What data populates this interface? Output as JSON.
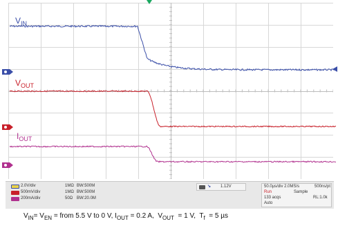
{
  "traces": {
    "vin": {
      "label_main": "V",
      "label_sub": "IN",
      "color": "#3a4ea8"
    },
    "vout": {
      "label_main": "V",
      "label_sub": "OUT",
      "color": "#c8202a"
    },
    "iout": {
      "label_main": "I",
      "label_sub": "OUT",
      "color": "#b0308e"
    }
  },
  "readouts": {
    "ch1": {
      "badge": "1",
      "scale": "2.0V/div",
      "coupling": "1MΩ",
      "bw": "BW:500M"
    },
    "ch2": {
      "badge": "2",
      "scale": "500mV/div",
      "coupling": "1MΩ",
      "bw": "BW:500M"
    },
    "ch3": {
      "badge": "3",
      "scale": "200mA/div",
      "coupling": "50Ω",
      "bw": "BW:20.0M"
    },
    "trigger": {
      "source": "1",
      "slope": "↘",
      "level": "1.12V"
    },
    "acquisition": {
      "timing": "50.0µs/div  2.0MS/s",
      "resolution": "500ns/pt",
      "state": "Run",
      "mode": "Sample",
      "acqs": "133 acqs",
      "record_length": "RL:1.0k",
      "auto": "Auto"
    }
  },
  "caption": {
    "p1": "V",
    "p1_sub": "IN",
    "p2": "= V",
    "p2_sub": "EN",
    "p3": " = from 5.5 V to 0 V, I",
    "p3_sub": "OUT",
    "p4": " = 0.2 A,  V",
    "p4_sub": "OUT",
    "p5": "  = 1 V,  T",
    "p5_sub": "f",
    "p6": "  = 5 µs"
  },
  "colors": {
    "grid": "#d7d7d7",
    "grid_center": "#bdbdbd",
    "ch1": "#3a4ea8",
    "ch2": "#c8202a",
    "ch3": "#b0308e",
    "trigger": "#1aa860",
    "readout_bg": "#e8e8e8"
  },
  "icons": [
    "ch1-ground-marker-icon",
    "ch2-ground-marker-icon",
    "ch3-ground-marker-icon",
    "trigger-position-icon",
    "trigger-level-arrow-icon"
  ]
}
